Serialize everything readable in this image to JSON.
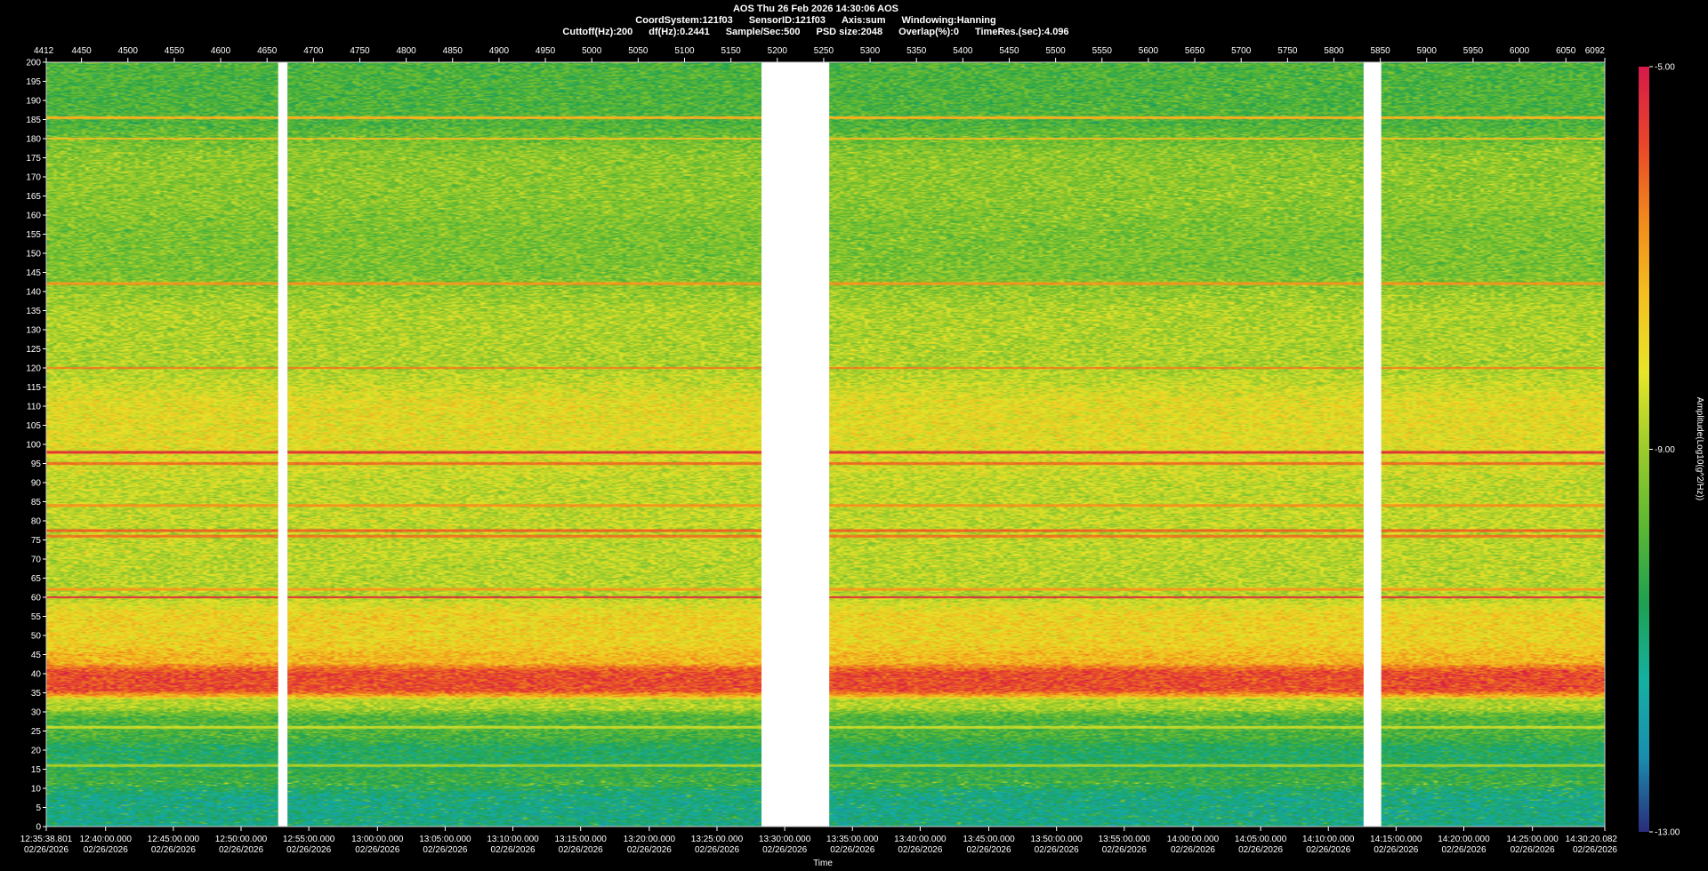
{
  "chart_data": {
    "type": "heatmap",
    "title": "AOS  Thu 26 Feb 2026 14:30:06  AOS",
    "header_fields": [
      "CoordSystem:121f03",
      "SensorID:121f03",
      "Axis:sum",
      "Windowing:Hanning"
    ],
    "params": [
      "Cuttoff(Hz):200",
      "df(Hz):0.2441",
      "Sample/Sec:500",
      "PSD size:2048",
      "Overlap(%):0",
      "TimeRes.(sec):4.096"
    ],
    "xlabel": "Time",
    "ylabel": "",
    "colorbar_label": "Amplitude(Log10(g^2/Hz))",
    "colorbar_ticks": [
      "-5.00",
      "-9.00",
      "-13.00"
    ],
    "color_range": [
      -13,
      -5
    ],
    "colormap": [
      "#2a2c7a",
      "#1a8fb0",
      "#15b0a0",
      "#1fa050",
      "#5cb833",
      "#9ccb2c",
      "#e6e62a",
      "#f4c020",
      "#f08a1c",
      "#e8462a",
      "#d51a4a"
    ],
    "ylim": [
      0,
      200
    ],
    "y_ticks": [
      0,
      5,
      10,
      15,
      20,
      25,
      30,
      35,
      40,
      45,
      50,
      55,
      60,
      65,
      70,
      75,
      80,
      85,
      90,
      95,
      100,
      105,
      110,
      115,
      120,
      125,
      130,
      135,
      140,
      145,
      150,
      155,
      160,
      165,
      170,
      175,
      180,
      185,
      190,
      195,
      200
    ],
    "top_axis_ticks": [
      4412,
      4450,
      4500,
      4550,
      4600,
      4650,
      4700,
      4750,
      4800,
      4850,
      4900,
      4950,
      5000,
      5050,
      5100,
      5150,
      5200,
      5250,
      5300,
      5350,
      5400,
      5450,
      5500,
      5550,
      5600,
      5650,
      5700,
      5750,
      5800,
      5850,
      5900,
      5950,
      6000,
      6050,
      6092
    ],
    "record_range": [
      4412,
      6092
    ],
    "bottom_time_ticks": [
      {
        "time": "12:35:38.801",
        "date": "02/26/2026",
        "rec": 4412
      },
      {
        "time": "12:40:00.000",
        "date": "02/26/2026",
        "rec": 4476
      },
      {
        "time": "12:45:00.000",
        "date": "02/26/2026",
        "rec": 4549
      },
      {
        "time": "12:50:00.000",
        "date": "02/26/2026",
        "rec": 4622
      },
      {
        "time": "12:55:00.000",
        "date": "02/26/2026",
        "rec": 4695
      },
      {
        "time": "13:00:00.000",
        "date": "02/26/2026",
        "rec": 4769
      },
      {
        "time": "13:05:00.000",
        "date": "02/26/2026",
        "rec": 4842
      },
      {
        "time": "13:10:00.000",
        "date": "02/26/2026",
        "rec": 4915
      },
      {
        "time": "13:15:00.000",
        "date": "02/26/2026",
        "rec": 4988
      },
      {
        "time": "13:20:00.000",
        "date": "02/26/2026",
        "rec": 5062
      },
      {
        "time": "13:25:00.000",
        "date": "02/26/2026",
        "rec": 5135
      },
      {
        "time": "13:30:00.000",
        "date": "02/26/2026",
        "rec": 5208
      },
      {
        "time": "13:35:00.000",
        "date": "02/26/2026",
        "rec": 5281
      },
      {
        "time": "13:40:00.000",
        "date": "02/26/2026",
        "rec": 5354
      },
      {
        "time": "13:45:00.000",
        "date": "02/26/2026",
        "rec": 5428
      },
      {
        "time": "13:50:00.000",
        "date": "02/26/2026",
        "rec": 5501
      },
      {
        "time": "13:55:00.000",
        "date": "02/26/2026",
        "rec": 5574
      },
      {
        "time": "14:00:00.000",
        "date": "02/26/2026",
        "rec": 5648
      },
      {
        "time": "14:05:00.000",
        "date": "02/26/2026",
        "rec": 5721
      },
      {
        "time": "14:10:00.000",
        "date": "02/26/2026",
        "rec": 5794
      },
      {
        "time": "14:15:00.000",
        "date": "02/26/2026",
        "rec": 5867
      },
      {
        "time": "14:20:00.000",
        "date": "02/26/2026",
        "rec": 5940
      },
      {
        "time": "14:25:00.000",
        "date": "02/26/2026",
        "rec": 6014
      },
      {
        "time": "14:30:20.082",
        "date": "02/26/2026",
        "rec": 6092
      }
    ],
    "data_gaps_records": [
      [
        4662,
        4672
      ],
      [
        5183,
        5256
      ],
      [
        5832,
        5851
      ]
    ],
    "spectral_bands": [
      {
        "lo": 0,
        "hi": 10,
        "level": -11.2
      },
      {
        "lo": 10,
        "hi": 15,
        "level": -10.3
      },
      {
        "lo": 15,
        "hi": 22,
        "level": -10.7
      },
      {
        "lo": 22,
        "hi": 30,
        "level": -10.0
      },
      {
        "lo": 30,
        "hi": 34,
        "level": -8.8
      },
      {
        "lo": 34,
        "hi": 42,
        "level": -5.8
      },
      {
        "lo": 42,
        "hi": 46,
        "level": -7.3
      },
      {
        "lo": 46,
        "hi": 58,
        "level": -7.8
      },
      {
        "lo": 58,
        "hi": 70,
        "level": -8.7
      },
      {
        "lo": 70,
        "hi": 95,
        "level": -8.6
      },
      {
        "lo": 95,
        "hi": 115,
        "level": -8.1
      },
      {
        "lo": 115,
        "hi": 140,
        "level": -8.8
      },
      {
        "lo": 140,
        "hi": 160,
        "level": -9.4
      },
      {
        "lo": 160,
        "hi": 180,
        "level": -9.2
      },
      {
        "lo": 180,
        "hi": 200,
        "level": -10.0
      }
    ],
    "tonal_lines_hz": [
      {
        "hz": 185.5,
        "level": -7.2
      },
      {
        "hz": 180,
        "level": -7.4
      },
      {
        "hz": 142,
        "level": -6.8
      },
      {
        "hz": 120,
        "level": -6.5
      },
      {
        "hz": 98,
        "level": -5.5
      },
      {
        "hz": 95,
        "level": -6.3
      },
      {
        "hz": 84,
        "level": -6.8
      },
      {
        "hz": 77.5,
        "level": -6.2
      },
      {
        "hz": 76,
        "level": -6.4
      },
      {
        "hz": 62,
        "level": -6.9
      },
      {
        "hz": 60,
        "level": -5.4
      },
      {
        "hz": 26,
        "level": -8.6
      },
      {
        "hz": 16,
        "level": -8.9
      }
    ]
  }
}
